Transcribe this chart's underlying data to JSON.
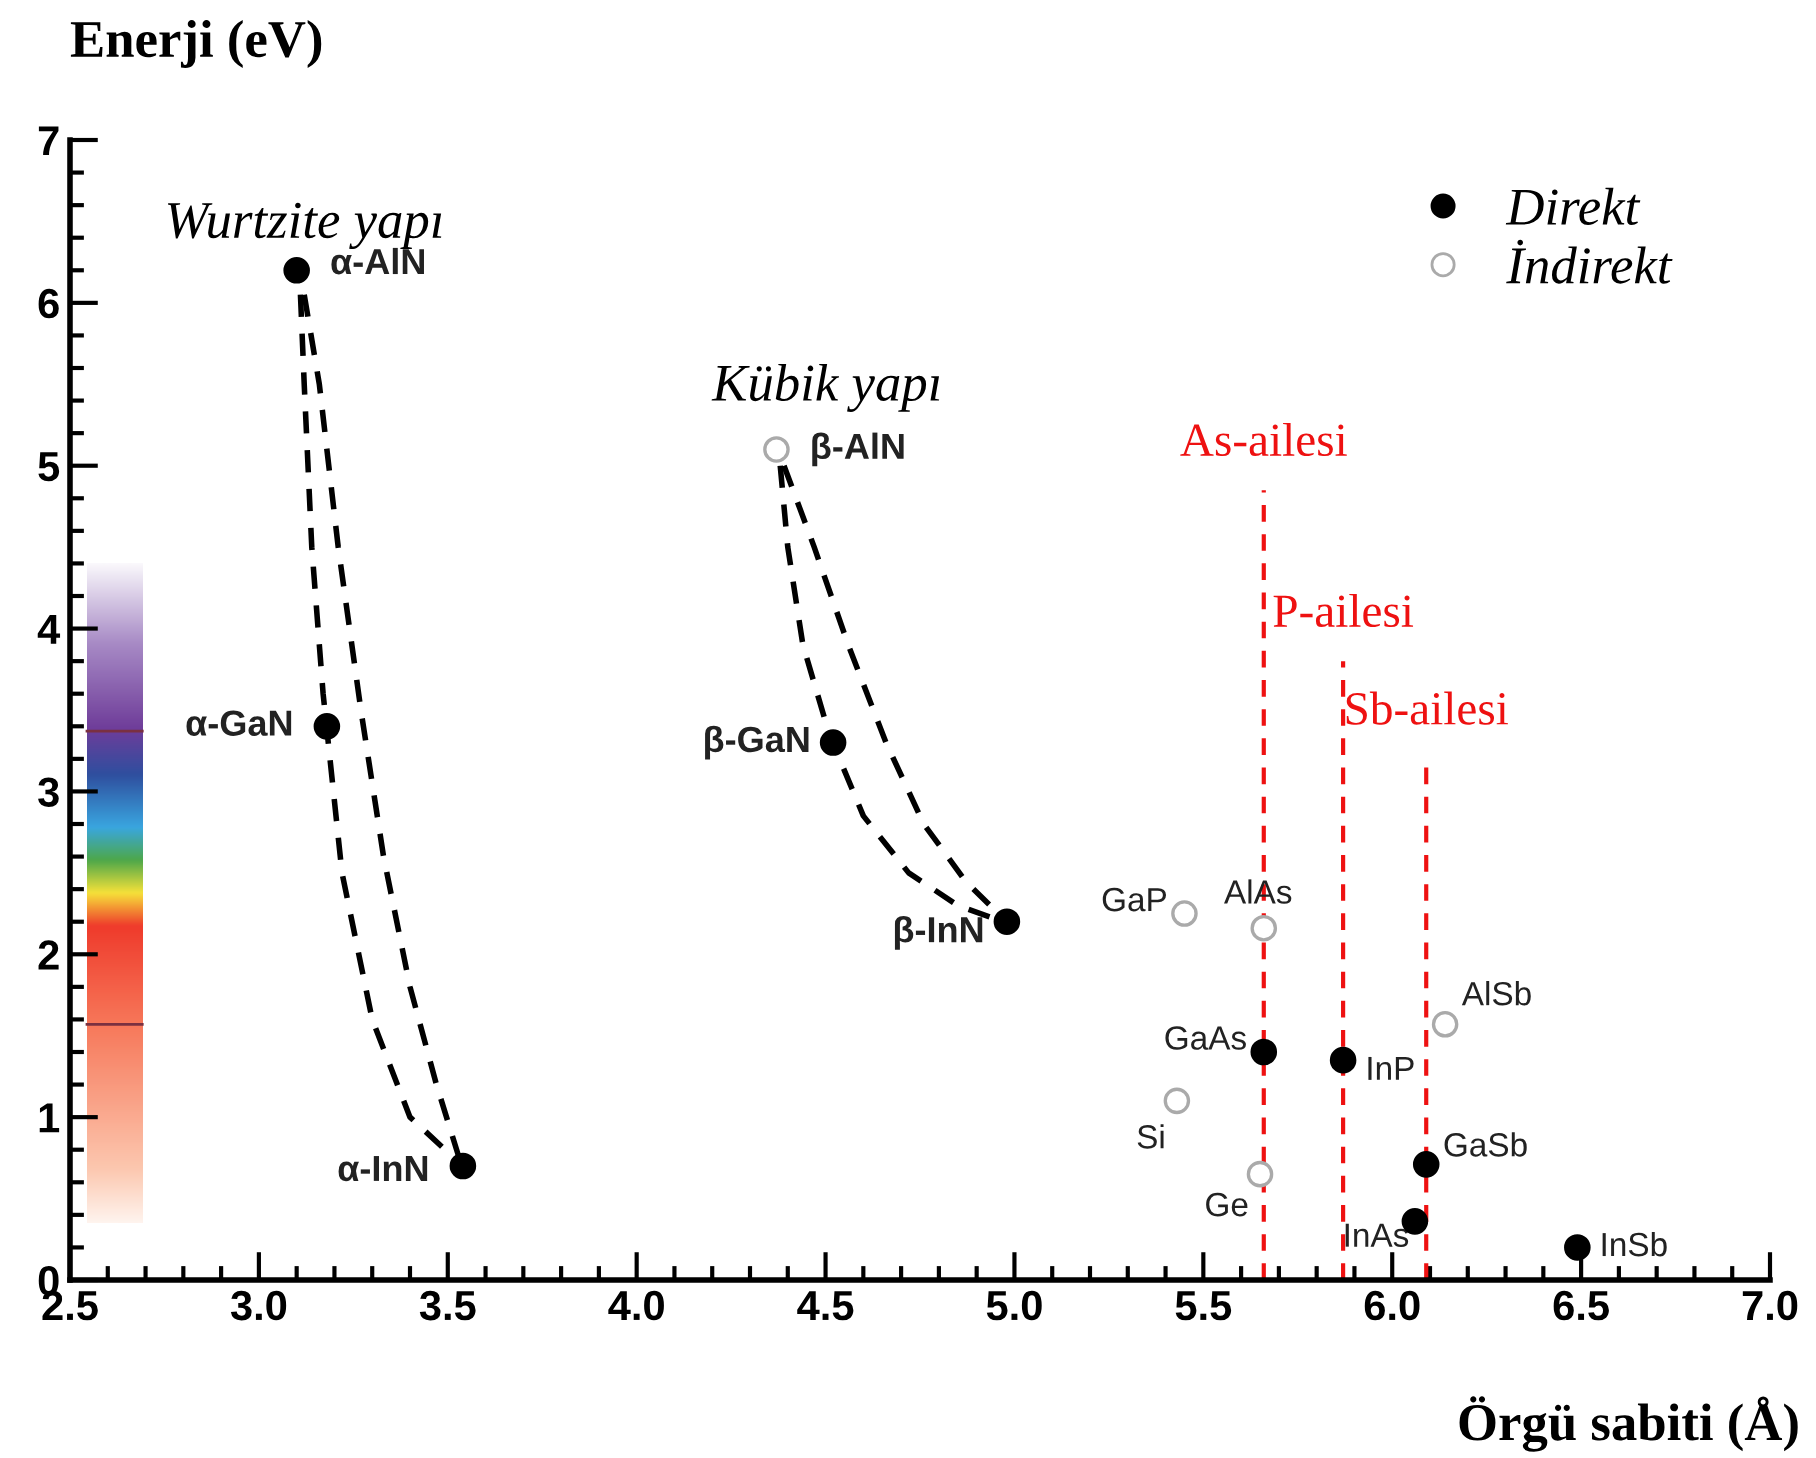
{
  "chart_data": {
    "type": "scatter",
    "xlabel": "Örgü sabiti (Å)",
    "ylabel": "Enerji (eV)",
    "xlim": [
      2.5,
      7.0
    ],
    "ylim": [
      0,
      7
    ],
    "xticks": [
      {
        "value": 2.5,
        "label": "2.5"
      },
      {
        "value": 3.0,
        "label": "3.0"
      },
      {
        "value": 3.5,
        "label": "3.5"
      },
      {
        "value": 4.0,
        "label": "4.0"
      },
      {
        "value": 4.5,
        "label": "4.5"
      },
      {
        "value": 5.0,
        "label": "5.0"
      },
      {
        "value": 5.5,
        "label": "5.5"
      },
      {
        "value": 6.0,
        "label": "6.0"
      },
      {
        "value": 6.5,
        "label": "6.5"
      },
      {
        "value": 7.0,
        "label": "7.0"
      }
    ],
    "yticks": [
      0,
      1,
      2,
      3,
      4,
      5,
      6,
      7
    ],
    "grid": false,
    "legend": "top right",
    "marker": "circle",
    "series": [
      {
        "name": "Direkt",
        "color": "#000000",
        "x": [
          3.1,
          3.18,
          3.54,
          4.52,
          4.98,
          5.66,
          5.87,
          6.09,
          6.06,
          6.49
        ],
        "values": [
          6.2,
          3.4,
          0.7,
          3.3,
          2.2,
          1.4,
          1.35,
          0.71,
          0.36,
          0.2
        ]
      },
      {
        "name": "İndirekt",
        "color": "#aaaaaa",
        "x": [
          4.37,
          5.45,
          5.66,
          6.14,
          5.43,
          5.65
        ],
        "values": [
          5.1,
          2.25,
          2.16,
          1.57,
          1.1,
          0.65
        ]
      },
      {
        "type": "line",
        "marker": "none",
        "line_style": "dashed",
        "color": "#000000",
        "x": [
          3.11,
          3.12,
          3.14,
          3.17,
          3.22,
          3.3,
          3.4,
          3.53
        ],
        "values": [
          6.05,
          5.5,
          4.5,
          3.6,
          2.5,
          1.6,
          1.0,
          0.72
        ]
      },
      {
        "type": "line",
        "marker": "none",
        "line_style": "dashed",
        "color": "#000000",
        "x": [
          3.12,
          3.16,
          3.21,
          3.27,
          3.33,
          3.4,
          3.47,
          3.53
        ],
        "values": [
          6.05,
          5.5,
          4.5,
          3.5,
          2.6,
          1.8,
          1.2,
          0.75
        ]
      },
      {
        "type": "line",
        "marker": "none",
        "line_style": "dashed",
        "color": "#000000",
        "x": [
          4.38,
          4.4,
          4.44,
          4.51,
          4.6,
          4.72,
          4.85,
          4.97
        ],
        "values": [
          5.0,
          4.5,
          3.9,
          3.35,
          2.85,
          2.5,
          2.3,
          2.2
        ]
      },
      {
        "type": "line",
        "marker": "none",
        "line_style": "dashed",
        "color": "#000000",
        "x": [
          4.39,
          4.47,
          4.56,
          4.66,
          4.76,
          4.87,
          4.97
        ],
        "values": [
          5.0,
          4.5,
          3.9,
          3.3,
          2.8,
          2.45,
          2.22
        ]
      }
    ],
    "ref_lines": [
      {
        "axis": "x",
        "value": 5.66,
        "label": "As-ailesi",
        "color": "#ee1111",
        "line_style": "dashed"
      },
      {
        "axis": "x",
        "value": 5.87,
        "label": "P-ailesi",
        "color": "#ee1111",
        "line_style": "dashed"
      },
      {
        "axis": "x",
        "value": 6.09,
        "label": "Sb-ailesi",
        "color": "#ee1111",
        "line_style": "dashed"
      }
    ],
    "annotations": [
      "Wurtzite yapı",
      "Kübik yapı",
      {
        "text": "α-AlN",
        "x": 3.1,
        "y": 6.2
      },
      {
        "text": "α-GaN",
        "x": 3.18,
        "y": 3.4
      },
      {
        "text": "α-InN",
        "x": 3.54,
        "y": 0.7
      },
      {
        "text": "β-AlN",
        "x": 4.37,
        "y": 5.1
      },
      {
        "text": "β-GaN",
        "x": 4.52,
        "y": 3.3
      },
      {
        "text": "β-InN",
        "x": 4.98,
        "y": 2.2
      },
      {
        "text": "GaP",
        "x": 5.45,
        "y": 2.25
      },
      {
        "text": "AlAs",
        "x": 5.66,
        "y": 2.16
      },
      {
        "text": "AlSb",
        "x": 6.14,
        "y": 1.57
      },
      {
        "text": "GaAs",
        "x": 5.66,
        "y": 1.4
      },
      {
        "text": "InP",
        "x": 5.87,
        "y": 1.35
      },
      {
        "text": "Si",
        "x": 5.43,
        "y": 1.1
      },
      {
        "text": "Ge",
        "x": 5.65,
        "y": 0.65
      },
      {
        "text": "GaSb",
        "x": 6.09,
        "y": 0.71
      },
      {
        "text": "InAs",
        "x": 6.06,
        "y": 0.36
      },
      {
        "text": "InSb",
        "x": 6.49,
        "y": 0.2
      }
    ]
  }
}
